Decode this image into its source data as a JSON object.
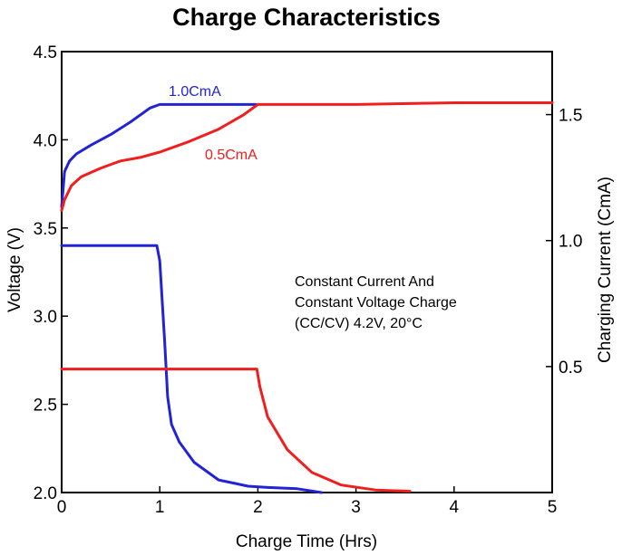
{
  "chart_data": {
    "type": "line",
    "title": "Charge Characteristics",
    "xlabel": "Charge Time (Hrs)",
    "ylabel": "Voltage (V)",
    "y2label": "Charging Current (CmA)",
    "xlim": [
      0,
      5
    ],
    "ylim": [
      2.0,
      4.5
    ],
    "y2lim": [
      0,
      1.75
    ],
    "xticks": [
      "0",
      "1",
      "2",
      "3",
      "4",
      "5"
    ],
    "yticks": [
      "2.0",
      "2.5",
      "3.0",
      "3.5",
      "4.0",
      "4.5"
    ],
    "y2ticks": [
      "0.5",
      "1.0",
      "1.5"
    ],
    "annotation": [
      "Constant Current And",
      "Constant Voltage Charge",
      "(CC/CV) 4.2V, 20°C"
    ],
    "grid": false,
    "colors": {
      "blue": "#2323d6",
      "red": "#f01e1e"
    },
    "series": [
      {
        "name": "1.0CmA",
        "quantity": "voltage",
        "axis": "left",
        "color": "#2323d6",
        "x": [
          0,
          0.03,
          0.08,
          0.15,
          0.3,
          0.5,
          0.7,
          0.9,
          1.0,
          1.5,
          1.98
        ],
        "y": [
          3.62,
          3.82,
          3.88,
          3.92,
          3.97,
          4.03,
          4.1,
          4.18,
          4.2,
          4.2,
          4.2
        ]
      },
      {
        "name": "0.5CmA",
        "quantity": "voltage",
        "axis": "left",
        "color": "#f01e1e",
        "x": [
          0,
          0.03,
          0.1,
          0.2,
          0.4,
          0.6,
          0.8,
          1.0,
          1.3,
          1.6,
          1.85,
          2.0,
          3.0,
          4.0,
          5.0
        ],
        "y": [
          3.6,
          3.66,
          3.74,
          3.79,
          3.84,
          3.88,
          3.9,
          3.93,
          3.99,
          4.06,
          4.14,
          4.2,
          4.2,
          4.21,
          4.21
        ],
        "ylabel_text": "0.5CmA"
      },
      {
        "name": "1.0CmA current",
        "quantity": "current",
        "axis": "right",
        "color": "#2323d6",
        "x": [
          0,
          0.57,
          0.61,
          0.97,
          1.0,
          1.05,
          1.08,
          1.12,
          1.2,
          1.35,
          1.6,
          1.9,
          2.1,
          2.4,
          2.65
        ],
        "y": [
          0.98,
          0.98,
          0.98,
          0.98,
          0.92,
          0.6,
          0.38,
          0.27,
          0.2,
          0.12,
          0.05,
          0.025,
          0.02,
          0.015,
          0.0
        ]
      },
      {
        "name": "0.5CmA current",
        "quantity": "current",
        "axis": "right",
        "color": "#f01e1e",
        "x": [
          0,
          1.0,
          1.99,
          2.02,
          2.1,
          2.3,
          2.55,
          2.85,
          3.2,
          3.55
        ],
        "y": [
          0.49,
          0.49,
          0.49,
          0.42,
          0.3,
          0.17,
          0.08,
          0.03,
          0.01,
          0.005
        ]
      }
    ]
  }
}
